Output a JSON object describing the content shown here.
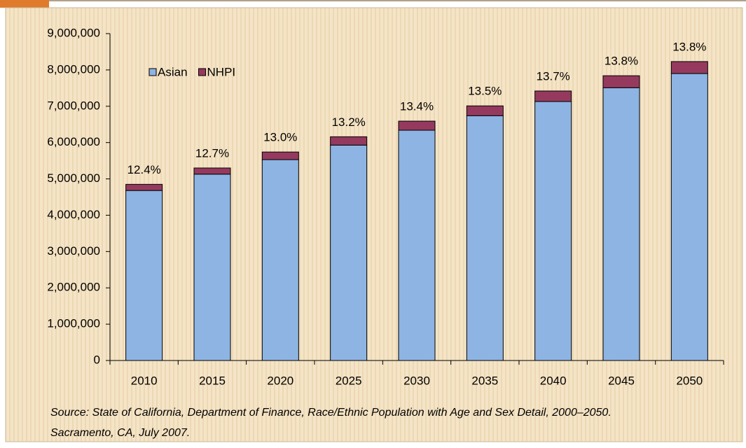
{
  "chart_data": {
    "type": "stacked_bar",
    "categories": [
      "2010",
      "2015",
      "2020",
      "2025",
      "2030",
      "2035",
      "2040",
      "2045",
      "2050"
    ],
    "series": [
      {
        "name": "Asian",
        "color": "#8eb4e3",
        "values": [
          4680000,
          5130000,
          5530000,
          5930000,
          6340000,
          6740000,
          7130000,
          7510000,
          7900000
        ]
      },
      {
        "name": "NHPI",
        "color": "#953a5e",
        "values": [
          170000,
          170000,
          210000,
          230000,
          250000,
          270000,
          290000,
          330000,
          330000
        ]
      }
    ],
    "percent_labels": [
      "12.4%",
      "12.7%",
      "13.0%",
      "13.2%",
      "13.4%",
      "13.5%",
      "13.7%",
      "13.8%",
      "13.8%"
    ],
    "ylim": [
      0,
      9000000
    ],
    "yticks": [
      0,
      {
        "value": 1000000,
        "label": "1,000,000"
      },
      {
        "value": 2000000,
        "label": "2,000,000"
      },
      {
        "value": 3000000,
        "label": "3,000,000"
      },
      {
        "value": 4000000,
        "label": "4,000,000"
      },
      {
        "value": 5000000,
        "label": "5,000,000"
      },
      {
        "value": 6000000,
        "label": "6,000,000"
      },
      {
        "value": 7000000,
        "label": "7,000,000"
      },
      {
        "value": 8000000,
        "label": "8,000,000"
      },
      {
        "value": 9000000,
        "label": "9,000,000"
      }
    ],
    "source": [
      "Source: State of California, Department of Finance, Race/Ethnic Population with Age and Sex Detail, 2000–2050.",
      "Sacramento, CA, July 2007."
    ],
    "legend": "upper left"
  }
}
